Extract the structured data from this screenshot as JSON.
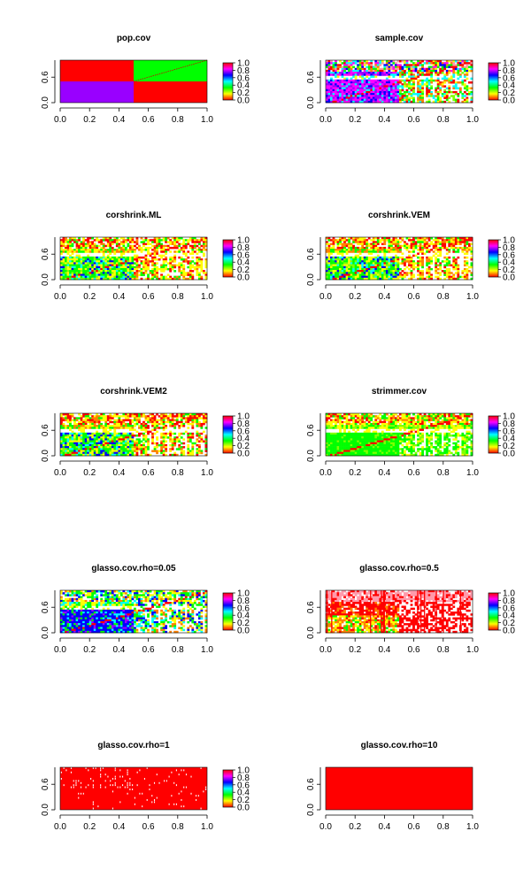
{
  "figure": {
    "background": "#ffffff",
    "layout": "5 rows x 2 columns of heatmap panels"
  },
  "chart_data": [
    {
      "type": "heatmap",
      "title": "pop.cov",
      "pattern": "pop",
      "xlim": [
        0,
        1
      ],
      "ylim": [
        0,
        1
      ],
      "x_ticks": [
        "0.0",
        "0.2",
        "0.4",
        "0.6",
        "0.8",
        "1.0"
      ],
      "y_ticks": [
        "0.0",
        "0.6"
      ],
      "colorbar": {
        "ticks": [
          "0.0",
          "0.2",
          "0.4",
          "0.6",
          "0.8",
          "1.0"
        ],
        "colors": [
          "#ff0000",
          "#ffff00",
          "#00ff00",
          "#00ffff",
          "#0000ff",
          "#ff00ff",
          "#ff0000"
        ]
      }
    },
    {
      "type": "heatmap",
      "title": "sample.cov",
      "pattern": "sample",
      "xlim": [
        0,
        1
      ],
      "ylim": [
        0,
        1
      ],
      "x_ticks": [
        "0.0",
        "0.2",
        "0.4",
        "0.6",
        "0.8",
        "1.0"
      ],
      "y_ticks": [
        "0.0",
        "0.6"
      ],
      "colorbar": {
        "ticks": [
          "0.0",
          "0.2",
          "0.4",
          "0.6",
          "0.8",
          "1.0"
        ],
        "colors": [
          "#ff0000",
          "#ffff00",
          "#00ff00",
          "#00ffff",
          "#0000ff",
          "#ff00ff",
          "#ff0000"
        ]
      }
    },
    {
      "type": "heatmap",
      "title": "corshrink.ML",
      "pattern": "shrink",
      "xlim": [
        0,
        1
      ],
      "ylim": [
        0,
        1
      ],
      "x_ticks": [
        "0.0",
        "0.2",
        "0.4",
        "0.6",
        "0.8",
        "1.0"
      ],
      "y_ticks": [
        "0.0",
        "0.6"
      ],
      "colorbar": {
        "ticks": [
          "0.0",
          "0.2",
          "0.4",
          "0.6",
          "0.8",
          "1.0"
        ],
        "colors": [
          "#ff0000",
          "#ffff00",
          "#00ff00",
          "#00ffff",
          "#0000ff",
          "#ff00ff",
          "#ff0000"
        ]
      }
    },
    {
      "type": "heatmap",
      "title": "corshrink.VEM",
      "pattern": "shrink",
      "xlim": [
        0,
        1
      ],
      "ylim": [
        0,
        1
      ],
      "x_ticks": [
        "0.0",
        "0.2",
        "0.4",
        "0.6",
        "0.8",
        "1.0"
      ],
      "y_ticks": [
        "0.0",
        "0.6"
      ],
      "colorbar": {
        "ticks": [
          "0.0",
          "0.2",
          "0.4",
          "0.6",
          "0.8",
          "1.0"
        ],
        "colors": [
          "#ff0000",
          "#ffff00",
          "#00ff00",
          "#00ffff",
          "#0000ff",
          "#ff00ff",
          "#ff0000"
        ]
      }
    },
    {
      "type": "heatmap",
      "title": "corshrink.VEM2",
      "pattern": "shrink",
      "xlim": [
        0,
        1
      ],
      "ylim": [
        0,
        1
      ],
      "x_ticks": [
        "0.0",
        "0.2",
        "0.4",
        "0.6",
        "0.8",
        "1.0"
      ],
      "y_ticks": [
        "0.0",
        "0.6"
      ],
      "colorbar": {
        "ticks": [
          "0.0",
          "0.2",
          "0.4",
          "0.6",
          "0.8",
          "1.0"
        ],
        "colors": [
          "#ff0000",
          "#ffff00",
          "#00ff00",
          "#00ffff",
          "#0000ff",
          "#ff00ff",
          "#ff0000"
        ]
      }
    },
    {
      "type": "heatmap",
      "title": "strimmer.cov",
      "pattern": "strimmer",
      "xlim": [
        0,
        1
      ],
      "ylim": [
        0,
        1
      ],
      "x_ticks": [
        "0.0",
        "0.2",
        "0.4",
        "0.6",
        "0.8",
        "1.0"
      ],
      "y_ticks": [
        "0.0",
        "0.6"
      ],
      "colorbar": {
        "ticks": [
          "0.0",
          "0.2",
          "0.4",
          "0.6",
          "0.8",
          "1.0"
        ],
        "colors": [
          "#ff0000",
          "#ffff00",
          "#00ff00",
          "#00ffff",
          "#0000ff",
          "#ff00ff",
          "#ff0000"
        ]
      }
    },
    {
      "type": "heatmap",
      "title": "glasso.cov.rho=0.05",
      "pattern": "glasso005",
      "xlim": [
        0,
        1
      ],
      "ylim": [
        0,
        1
      ],
      "x_ticks": [
        "0.0",
        "0.2",
        "0.4",
        "0.6",
        "0.8",
        "1.0"
      ],
      "y_ticks": [
        "0.0",
        "0.6"
      ],
      "colorbar": {
        "ticks": [
          "0.0",
          "0.2",
          "0.4",
          "0.6",
          "0.8",
          "1.0"
        ],
        "colors": [
          "#ff0000",
          "#ffff00",
          "#00ff00",
          "#00ffff",
          "#0000ff",
          "#ff00ff",
          "#ff0000"
        ]
      }
    },
    {
      "type": "heatmap",
      "title": "glasso.cov.rho=0.5",
      "pattern": "glasso05",
      "xlim": [
        0,
        1
      ],
      "ylim": [
        0,
        1
      ],
      "x_ticks": [
        "0.0",
        "0.2",
        "0.4",
        "0.6",
        "0.8",
        "1.0"
      ],
      "y_ticks": [
        "0.0",
        "0.6"
      ],
      "colorbar": {
        "ticks": [
          "0.0",
          "0.2",
          "0.4",
          "0.6",
          "0.8",
          "1.0"
        ],
        "colors": [
          "#ff0000",
          "#ffff00",
          "#00ff00",
          "#00ffff",
          "#0000ff",
          "#ff00ff",
          "#ff0000"
        ]
      }
    },
    {
      "type": "heatmap",
      "title": "glasso.cov.rho=1",
      "pattern": "glasso1",
      "xlim": [
        0,
        1
      ],
      "ylim": [
        0,
        1
      ],
      "x_ticks": [
        "0.0",
        "0.2",
        "0.4",
        "0.6",
        "0.8",
        "1.0"
      ],
      "y_ticks": [
        "0.0",
        "0.6"
      ],
      "colorbar": {
        "ticks": [
          "0.0",
          "0.2",
          "0.4",
          "0.6",
          "0.8",
          "1.0"
        ],
        "colors": [
          "#ff0000",
          "#ffff00",
          "#00ff00",
          "#00ffff",
          "#0000ff",
          "#ff00ff",
          "#ff0000"
        ]
      }
    },
    {
      "type": "heatmap",
      "title": "glasso.cov.rho=10",
      "pattern": "glasso10",
      "xlim": [
        0,
        1
      ],
      "ylim": [
        0,
        1
      ],
      "x_ticks": [
        "0.0",
        "0.2",
        "0.4",
        "0.6",
        "0.8",
        "1.0"
      ],
      "y_ticks": [
        "0.0",
        "0.6"
      ],
      "colorbar": null
    }
  ]
}
